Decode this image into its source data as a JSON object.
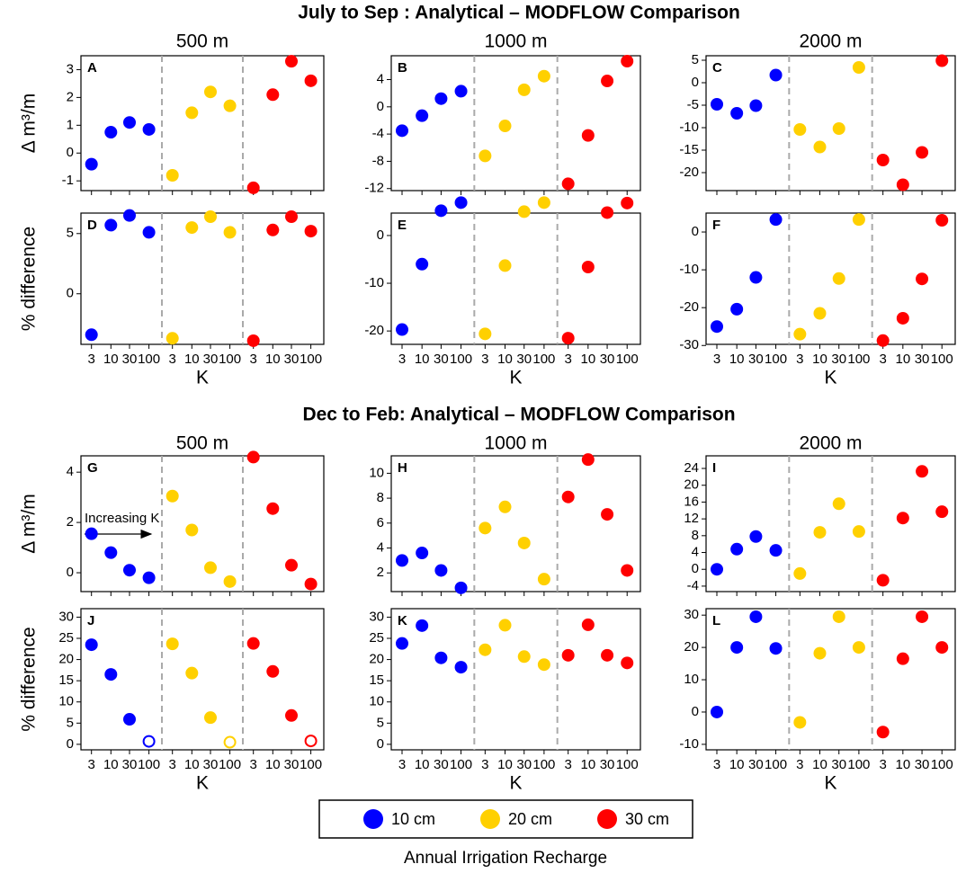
{
  "sections": [
    {
      "title": "July to Sep : Analytical – MODFLOW Comparison",
      "columns": [
        "500 m",
        "1000 m",
        "2000 m"
      ]
    },
    {
      "title": "Dec to Feb: Analytical – MODFLOW Comparison",
      "columns": [
        "500 m",
        "1000 m",
        "2000 m"
      ]
    }
  ],
  "legend": {
    "title": "Annual Irrigation Recharge"
  },
  "chart_data": [
    {
      "type": "scatter",
      "label": "A",
      "ylabel": "Δ m³/m",
      "ylim": [
        -1.35,
        3.5
      ],
      "yticks": [
        -1,
        0,
        1,
        2,
        3
      ],
      "series": [
        {
          "name": "10 cm",
          "color": "#0000ff",
          "values": [
            -0.4,
            0.75,
            1.1,
            0.85
          ]
        },
        {
          "name": "20 cm",
          "color": "#ffd000",
          "values": [
            -0.8,
            1.45,
            2.2,
            1.7
          ]
        },
        {
          "name": "30 cm",
          "color": "#ff0000",
          "values": [
            -1.25,
            2.1,
            3.3,
            2.6
          ]
        }
      ]
    },
    {
      "type": "scatter",
      "label": "B",
      "ylim": [
        -12.3,
        7.5
      ],
      "yticks": [
        -12,
        -8,
        -4,
        0,
        4
      ],
      "series": [
        {
          "name": "10 cm",
          "color": "#0000ff",
          "values": [
            -3.5,
            -1.3,
            1.2,
            2.3
          ]
        },
        {
          "name": "20 cm",
          "color": "#ffd000",
          "values": [
            -7.2,
            -2.8,
            2.5,
            4.5
          ]
        },
        {
          "name": "30 cm",
          "color": "#ff0000",
          "values": [
            -11.3,
            -4.2,
            3.8,
            6.7
          ]
        }
      ]
    },
    {
      "type": "scatter",
      "label": "C",
      "ylim": [
        -24,
        6
      ],
      "yticks": [
        -20,
        -15,
        -10,
        -5,
        0,
        5
      ],
      "series": [
        {
          "name": "10 cm",
          "color": "#0000ff",
          "values": [
            -4.8,
            -6.8,
            -5.1,
            1.7
          ]
        },
        {
          "name": "20 cm",
          "color": "#ffd000",
          "values": [
            -10.4,
            -14.3,
            -10.2,
            3.4
          ]
        },
        {
          "name": "30 cm",
          "color": "#ff0000",
          "values": [
            -17.2,
            -22.7,
            -15.5,
            4.9
          ]
        }
      ]
    },
    {
      "type": "scatter",
      "label": "D",
      "ylabel": "% difference",
      "xlabel": "K",
      "ylim": [
        -4.2,
        6.7
      ],
      "yticks": [
        0,
        5
      ],
      "categories": [
        "3",
        "10",
        "30",
        "100",
        "3",
        "10",
        "30",
        "100",
        "3",
        "10",
        "30",
        "100"
      ],
      "series": [
        {
          "name": "10 cm",
          "color": "#0000ff",
          "values": [
            -3.4,
            5.7,
            6.5,
            5.1
          ]
        },
        {
          "name": "20 cm",
          "color": "#ffd000",
          "values": [
            -3.7,
            5.5,
            6.4,
            5.1
          ]
        },
        {
          "name": "30 cm",
          "color": "#ff0000",
          "values": [
            -3.9,
            5.3,
            6.4,
            5.2
          ]
        }
      ]
    },
    {
      "type": "scatter",
      "label": "E",
      "xlabel": "K",
      "ylim": [
        -22.8,
        4.7
      ],
      "yticks": [
        -20,
        -10,
        0
      ],
      "categories": [
        "3",
        "10",
        "30",
        "100",
        "3",
        "10",
        "30",
        "100",
        "3",
        "10",
        "30",
        "100"
      ],
      "series": [
        {
          "name": "10 cm",
          "color": "#0000ff",
          "values": [
            -19.7,
            -6,
            5.2,
            6.9
          ]
        },
        {
          "name": "20 cm",
          "color": "#ffd000",
          "values": [
            -20.6,
            -6.3,
            5,
            6.9
          ]
        },
        {
          "name": "30 cm",
          "color": "#ff0000",
          "values": [
            -21.5,
            -6.6,
            4.8,
            6.8
          ]
        }
      ]
    },
    {
      "type": "scatter",
      "label": "F",
      "xlabel": "K",
      "ylim": [
        -29.7,
        5
      ],
      "yticks": [
        -30,
        -20,
        -10,
        0
      ],
      "categories": [
        "3",
        "10",
        "30",
        "100",
        "3",
        "10",
        "30",
        "100",
        "3",
        "10",
        "30",
        "100"
      ],
      "series": [
        {
          "name": "10 cm",
          "color": "#0000ff",
          "values": [
            -25,
            -20.4,
            -12,
            3.3
          ]
        },
        {
          "name": "20 cm",
          "color": "#ffd000",
          "values": [
            -27,
            -21.5,
            -12.3,
            3.3
          ]
        },
        {
          "name": "30 cm",
          "color": "#ff0000",
          "values": [
            -28.7,
            -22.8,
            -12.4,
            3.1
          ]
        }
      ]
    },
    {
      "type": "scatter",
      "label": "G",
      "ylabel": "Δ m³/m",
      "annotation": "Increasing K",
      "ylim": [
        -0.75,
        4.65
      ],
      "yticks": [
        0,
        2,
        4
      ],
      "series": [
        {
          "name": "10 cm",
          "color": "#0000ff",
          "values": [
            1.55,
            0.8,
            0.1,
            -0.2
          ]
        },
        {
          "name": "20 cm",
          "color": "#ffd000",
          "values": [
            3.05,
            1.7,
            0.2,
            -0.35
          ]
        },
        {
          "name": "30 cm",
          "color": "#ff0000",
          "values": [
            4.6,
            2.55,
            0.3,
            -0.45
          ]
        }
      ]
    },
    {
      "type": "scatter",
      "label": "H",
      "ylim": [
        0.5,
        11.4
      ],
      "yticks": [
        2,
        4,
        6,
        8,
        10
      ],
      "series": [
        {
          "name": "10 cm",
          "color": "#0000ff",
          "values": [
            3,
            3.6,
            2.2,
            0.8
          ]
        },
        {
          "name": "20 cm",
          "color": "#ffd000",
          "values": [
            5.6,
            7.3,
            4.4,
            1.5
          ]
        },
        {
          "name": "30 cm",
          "color": "#ff0000",
          "values": [
            8.1,
            11.1,
            6.7,
            2.2
          ]
        }
      ]
    },
    {
      "type": "scatter",
      "label": "I",
      "ylim": [
        -5.3,
        27
      ],
      "yticks": [
        -4,
        0,
        4,
        8,
        12,
        16,
        20,
        24
      ],
      "series": [
        {
          "name": "10 cm",
          "color": "#0000ff",
          "values": [
            0,
            4.8,
            7.8,
            4.5
          ]
        },
        {
          "name": "20 cm",
          "color": "#ffd000",
          "values": [
            -1,
            8.8,
            15.6,
            9
          ]
        },
        {
          "name": "30 cm",
          "color": "#ff0000",
          "values": [
            -2.6,
            12.2,
            23.3,
            13.7
          ]
        }
      ]
    },
    {
      "type": "scatter",
      "label": "J",
      "ylabel": "% difference",
      "xlabel": "K",
      "ylim": [
        -1.3,
        32
      ],
      "yticks": [
        0,
        5,
        10,
        15,
        20,
        25,
        30
      ],
      "categories": [
        "3",
        "10",
        "30",
        "100",
        "3",
        "10",
        "30",
        "100",
        "3",
        "10",
        "30",
        "100"
      ],
      "series": [
        {
          "name": "10 cm",
          "color": "#0000ff",
          "values": [
            23.5,
            16.5,
            5.9,
            0.7
          ],
          "marker_fill": [
            "filled",
            "filled",
            "filled",
            "open"
          ]
        },
        {
          "name": "20 cm",
          "color": "#ffd000",
          "values": [
            23.7,
            16.8,
            6.3,
            0.5
          ],
          "marker_fill": [
            "filled",
            "filled",
            "filled",
            "open"
          ]
        },
        {
          "name": "30 cm",
          "color": "#ff0000",
          "values": [
            23.8,
            17.2,
            6.8,
            0.8
          ],
          "marker_fill": [
            "filled",
            "filled",
            "filled",
            "open"
          ]
        }
      ]
    },
    {
      "type": "scatter",
      "label": "K",
      "xlabel": "K",
      "ylim": [
        -1.3,
        32
      ],
      "yticks": [
        0,
        5,
        10,
        15,
        20,
        25,
        30
      ],
      "categories": [
        "3",
        "10",
        "30",
        "100",
        "3",
        "10",
        "30",
        "100",
        "3",
        "10",
        "30",
        "100"
      ],
      "series": [
        {
          "name": "10 cm",
          "color": "#0000ff",
          "values": [
            23.8,
            28,
            20.4,
            18.2
          ]
        },
        {
          "name": "20 cm",
          "color": "#ffd000",
          "values": [
            22.3,
            28.1,
            20.7,
            18.8
          ]
        },
        {
          "name": "30 cm",
          "color": "#ff0000",
          "values": [
            21,
            28.2,
            21,
            19.2
          ]
        }
      ]
    },
    {
      "type": "scatter",
      "label": "L",
      "xlabel": "K",
      "ylim": [
        -11.7,
        32
      ],
      "yticks": [
        -10,
        0,
        10,
        20,
        30
      ],
      "categories": [
        "3",
        "10",
        "30",
        "100",
        "3",
        "10",
        "30",
        "100",
        "3",
        "10",
        "30",
        "100"
      ],
      "series": [
        {
          "name": "10 cm",
          "color": "#0000ff",
          "values": [
            0,
            20,
            29.5,
            19.7
          ]
        },
        {
          "name": "20 cm",
          "color": "#ffd000",
          "values": [
            -3.2,
            18.2,
            29.5,
            20
          ]
        },
        {
          "name": "30 cm",
          "color": "#ff0000",
          "values": [
            -6.2,
            16.5,
            29.5,
            20
          ]
        }
      ]
    }
  ]
}
